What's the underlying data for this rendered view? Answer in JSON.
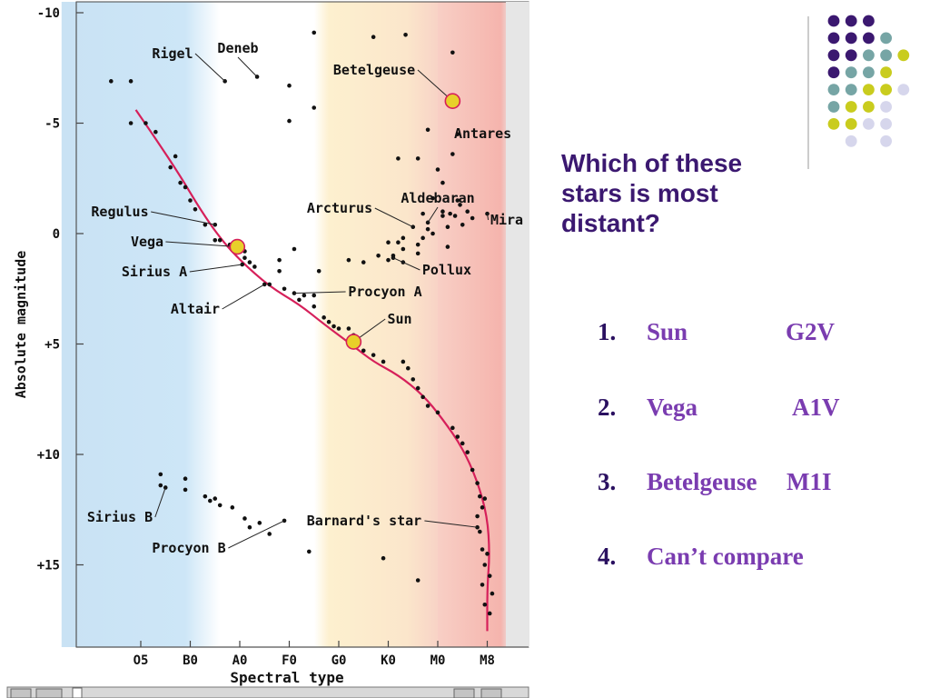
{
  "question": {
    "line1": "Which of these",
    "line2": "stars is most",
    "line3": "distant?"
  },
  "answers": [
    {
      "num": "1.",
      "star": "Sun",
      "cls": "G2V"
    },
    {
      "num": "2.",
      "star": "Vega",
      "cls": "A1V"
    },
    {
      "num": "3.",
      "star": "Betelgeuse",
      "cls": "M1I"
    },
    {
      "num": "4.",
      "star": "Can’t compare",
      "cls": ""
    }
  ],
  "colors": {
    "accent_dark": "#3b1870",
    "accent": "#7a3cb0",
    "dot_purple": "#3b1870",
    "dot_teal": "#76a5a5",
    "dot_yellow": "#c9cc1e",
    "dot_lavender": "#d6d6ec",
    "main_sequence": "#d6205a",
    "highlight": "#e8d02a"
  },
  "decoration": {
    "dot_grid": [
      [
        "purple",
        "purple",
        "purple",
        "",
        "",
        ""
      ],
      [
        "purple",
        "purple",
        "purple",
        "teal",
        "",
        ""
      ],
      [
        "purple",
        "purple",
        "teal",
        "teal",
        "yellow",
        ""
      ],
      [
        "purple",
        "teal",
        "teal",
        "yellow",
        "",
        ""
      ],
      [
        "teal",
        "teal",
        "yellow",
        "yellow",
        "lavender",
        ""
      ],
      [
        "teal",
        "yellow",
        "yellow",
        "lavender",
        "",
        ""
      ],
      [
        "yellow",
        "yellow",
        "lavender",
        "lavender",
        "",
        ""
      ],
      [
        "",
        "lavender",
        "",
        "lavender",
        "",
        ""
      ]
    ]
  },
  "chart_data": {
    "type": "scatter",
    "title": "",
    "xlabel": "Spectral type",
    "ylabel": "Absolute magnitude",
    "x_ticks": [
      "O5",
      "B0",
      "A0",
      "F0",
      "G0",
      "K0",
      "M0",
      "M8"
    ],
    "x_tick_positions": [
      0,
      1,
      2,
      3,
      4,
      5,
      6,
      7
    ],
    "y_ticks": [
      "-10",
      "-5",
      "0",
      "+5",
      "+10",
      "+15"
    ],
    "y_tick_values": [
      -10,
      -5,
      0,
      5,
      10,
      15
    ],
    "ylim": [
      -10,
      18.5
    ],
    "xlim": [
      -1.6,
      8.0
    ],
    "y_inverted": true,
    "bands": [
      {
        "color": "blue",
        "from": -1.6,
        "to": 1.6
      },
      {
        "color": "white",
        "from": 1.6,
        "to": 3.5
      },
      {
        "color": "yellow",
        "from": 3.5,
        "to": 6.0
      },
      {
        "color": "red",
        "from": 6.0,
        "to": 7.5
      }
    ],
    "main_sequence_curve": [
      [
        -0.1,
        -5.6
      ],
      [
        0.3,
        -4.3
      ],
      [
        0.8,
        -2.6
      ],
      [
        1.2,
        -1.1
      ],
      [
        1.6,
        0.2
      ],
      [
        2.0,
        1.2
      ],
      [
        2.6,
        2.4
      ],
      [
        3.2,
        3.2
      ],
      [
        3.7,
        4.1
      ],
      [
        4.3,
        5.1
      ],
      [
        4.7,
        5.8
      ],
      [
        5.2,
        6.4
      ],
      [
        5.7,
        7.3
      ],
      [
        6.1,
        8.4
      ],
      [
        6.5,
        9.7
      ],
      [
        6.8,
        11.2
      ],
      [
        7.0,
        12.8
      ],
      [
        7.05,
        14.5
      ],
      [
        7.0,
        16.0
      ],
      [
        7.0,
        18.0
      ]
    ],
    "stars": [
      {
        "name": "Rigel",
        "x": 1.7,
        "y": -6.9
      },
      {
        "name": "Deneb",
        "x": 2.35,
        "y": -7.1
      },
      {
        "name": "Betelgeuse",
        "x": 6.3,
        "y": -6.0,
        "highlight": true
      },
      {
        "name": "Antares",
        "x": 6.4,
        "y": -4.5
      },
      {
        "name": "Regulus",
        "x": 1.5,
        "y": -0.4
      },
      {
        "name": "Vega",
        "x": 1.95,
        "y": 0.6,
        "highlight": true
      },
      {
        "name": "Sirius A",
        "x": 2.05,
        "y": 1.4
      },
      {
        "name": "Altair",
        "x": 2.5,
        "y": 2.3
      },
      {
        "name": "Arcturus",
        "x": 5.5,
        "y": -0.3
      },
      {
        "name": "Aldebaran",
        "x": 5.8,
        "y": -0.5
      },
      {
        "name": "Mira",
        "x": 7.0,
        "y": -0.9
      },
      {
        "name": "Pollux",
        "x": 5.1,
        "y": 1.1
      },
      {
        "name": "Procyon A",
        "x": 3.1,
        "y": 2.7
      },
      {
        "name": "Sun",
        "x": 4.3,
        "y": 4.9,
        "highlight": true
      },
      {
        "name": "Sirius B",
        "x": 0.5,
        "y": 11.5
      },
      {
        "name": "Procyon B",
        "x": 2.9,
        "y": 13.0
      },
      {
        "name": "Barnard's star",
        "x": 6.8,
        "y": 13.3
      }
    ],
    "points": [
      [
        -0.6,
        -6.9
      ],
      [
        -0.2,
        -6.9
      ],
      [
        -0.2,
        -5.0
      ],
      [
        0.1,
        -5.0
      ],
      [
        0.3,
        -4.6
      ],
      [
        0.7,
        -3.5
      ],
      [
        0.6,
        -3.0
      ],
      [
        0.8,
        -2.3
      ],
      [
        0.9,
        -2.1
      ],
      [
        1.0,
        -1.5
      ],
      [
        1.1,
        -1.1
      ],
      [
        1.3,
        -0.4
      ],
      [
        1.5,
        0.3
      ],
      [
        1.6,
        0.3
      ],
      [
        1.8,
        0.5
      ],
      [
        2.0,
        0.6
      ],
      [
        2.1,
        0.8
      ],
      [
        2.1,
        1.1
      ],
      [
        2.2,
        1.3
      ],
      [
        2.3,
        1.5
      ],
      [
        2.6,
        2.3
      ],
      [
        2.9,
        2.5
      ],
      [
        3.2,
        3.0
      ],
      [
        3.3,
        2.8
      ],
      [
        3.5,
        3.3
      ],
      [
        3.7,
        3.8
      ],
      [
        3.8,
        4.0
      ],
      [
        3.9,
        4.2
      ],
      [
        4.0,
        4.3
      ],
      [
        4.2,
        4.3
      ],
      [
        4.3,
        4.6
      ],
      [
        4.5,
        5.3
      ],
      [
        4.7,
        5.5
      ],
      [
        4.9,
        5.8
      ],
      [
        5.3,
        5.8
      ],
      [
        5.4,
        6.1
      ],
      [
        5.5,
        6.6
      ],
      [
        5.6,
        7.0
      ],
      [
        5.7,
        7.4
      ],
      [
        5.8,
        7.8
      ],
      [
        6.0,
        8.1
      ],
      [
        6.3,
        8.8
      ],
      [
        6.4,
        9.2
      ],
      [
        6.5,
        9.5
      ],
      [
        6.6,
        9.9
      ],
      [
        6.7,
        10.7
      ],
      [
        6.8,
        11.3
      ],
      [
        6.85,
        11.9
      ],
      [
        6.9,
        12.4
      ],
      [
        6.95,
        12.0
      ],
      [
        6.8,
        12.8
      ],
      [
        6.85,
        13.5
      ],
      [
        6.9,
        14.3
      ],
      [
        7.0,
        14.5
      ],
      [
        6.95,
        15.0
      ],
      [
        7.05,
        15.5
      ],
      [
        7.1,
        16.3
      ],
      [
        6.9,
        15.9
      ],
      [
        6.95,
        16.8
      ],
      [
        7.05,
        17.2
      ],
      [
        3.5,
        -9.1
      ],
      [
        4.7,
        -8.9
      ],
      [
        5.35,
        -9.0
      ],
      [
        6.3,
        -8.2
      ],
      [
        3.0,
        -6.7
      ],
      [
        3.0,
        -5.1
      ],
      [
        3.5,
        -5.7
      ],
      [
        5.8,
        -4.7
      ],
      [
        5.6,
        -3.4
      ],
      [
        5.2,
        -3.4
      ],
      [
        6.3,
        -3.6
      ],
      [
        6.0,
        -2.9
      ],
      [
        6.1,
        -2.3
      ],
      [
        5.9,
        -1.6
      ],
      [
        6.4,
        -1.5
      ],
      [
        5.7,
        -0.9
      ],
      [
        6.1,
        -0.8
      ],
      [
        6.25,
        -0.9
      ],
      [
        6.35,
        -0.8
      ],
      [
        6.45,
        -1.3
      ],
      [
        6.1,
        -1.0
      ],
      [
        6.6,
        -1.0
      ],
      [
        6.7,
        -0.7
      ],
      [
        6.5,
        -0.4
      ],
      [
        6.2,
        -0.3
      ],
      [
        5.8,
        -0.2
      ],
      [
        5.9,
        0.0
      ],
      [
        5.7,
        0.2
      ],
      [
        5.6,
        0.5
      ],
      [
        5.6,
        0.9
      ],
      [
        5.3,
        0.2
      ],
      [
        5.2,
        0.4
      ],
      [
        5.1,
        1.0
      ],
      [
        5.0,
        0.4
      ],
      [
        5.3,
        0.7
      ],
      [
        4.5,
        1.3
      ],
      [
        4.2,
        1.2
      ],
      [
        3.6,
        1.7
      ],
      [
        3.5,
        2.8
      ],
      [
        3.1,
        0.7
      ],
      [
        2.8,
        1.2
      ],
      [
        2.8,
        1.7
      ],
      [
        5.0,
        1.2
      ],
      [
        4.8,
        1.0
      ],
      [
        5.3,
        1.3
      ],
      [
        6.2,
        0.6
      ],
      [
        0.4,
        10.9
      ],
      [
        0.4,
        11.4
      ],
      [
        0.9,
        11.1
      ],
      [
        0.9,
        11.6
      ],
      [
        1.3,
        11.9
      ],
      [
        1.4,
        12.1
      ],
      [
        1.5,
        12.0
      ],
      [
        1.6,
        12.3
      ],
      [
        1.85,
        12.4
      ],
      [
        2.1,
        12.9
      ],
      [
        2.2,
        13.3
      ],
      [
        2.4,
        13.1
      ],
      [
        2.6,
        13.6
      ],
      [
        3.4,
        14.4
      ],
      [
        4.9,
        14.7
      ],
      [
        5.6,
        15.7
      ]
    ]
  }
}
